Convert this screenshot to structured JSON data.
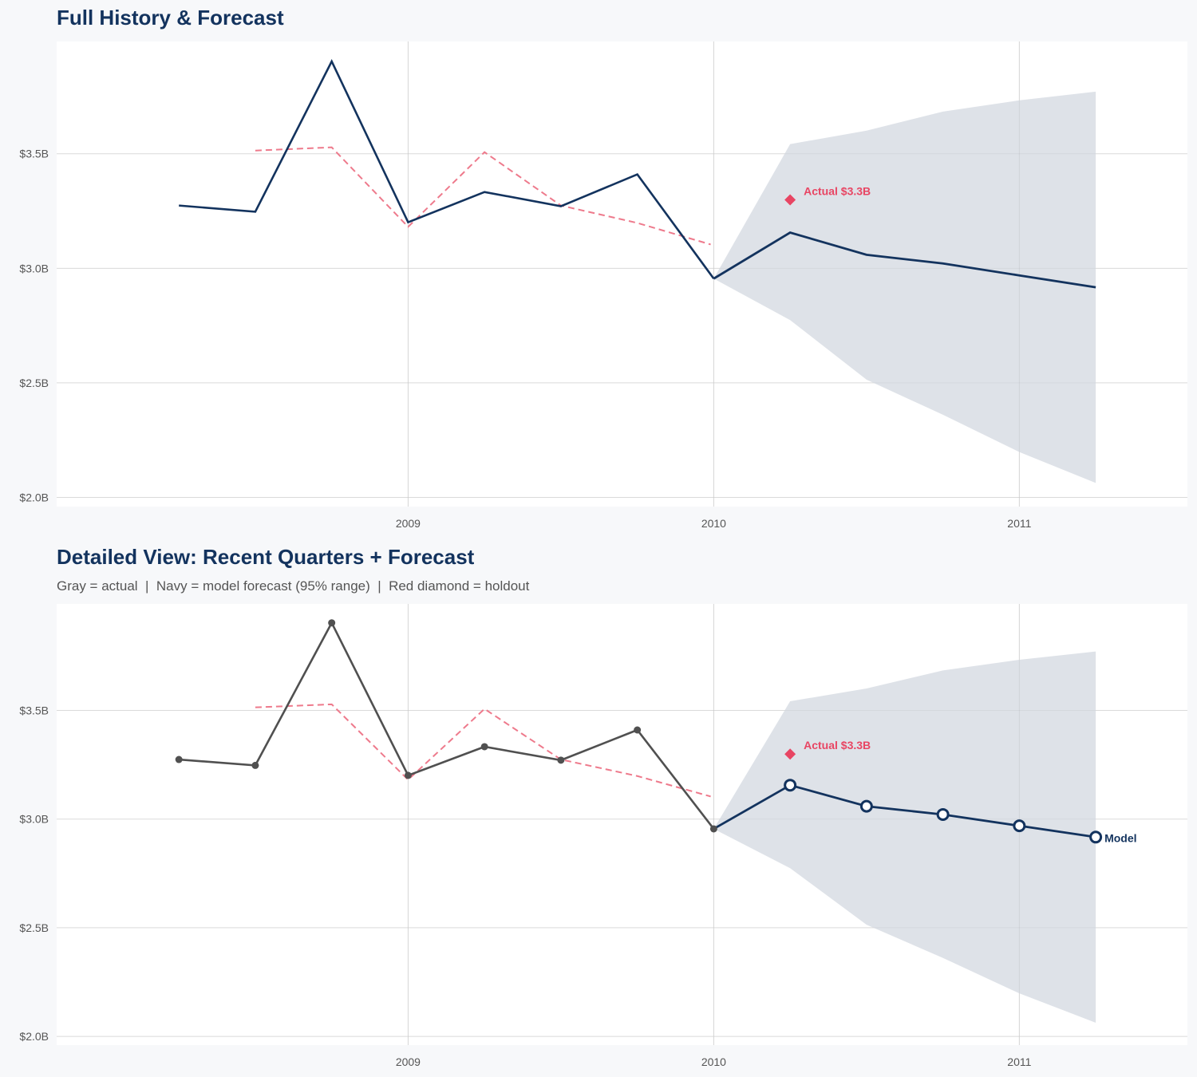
{
  "colors": {
    "navy": "#13335e",
    "gray_actual": "#505050",
    "holdout_red": "#e84563",
    "band": "#dce0e7",
    "fitted_dashed": "#ee7a8c",
    "background": "#f7f8fa"
  },
  "chart_data": [
    {
      "type": "line",
      "title": "Full History & Forecast",
      "subtitle": "",
      "xlabel": "",
      "ylabel": "",
      "x_ticks": [
        2009,
        2010,
        2011
      ],
      "x_tick_labels": [
        "2009",
        "2010",
        "2011"
      ],
      "y_ticks": [
        2.0,
        2.5,
        3.0,
        3.5
      ],
      "y_tick_labels": [
        "$2.0B",
        "$2.5B",
        "$3.0B",
        "$3.5B"
      ],
      "xlim": [
        2007.85,
        2011.55
      ],
      "ylim": [
        1.96,
        3.99
      ],
      "grid": true,
      "show_markers": false,
      "actual": {
        "x": [
          2008.25,
          2008.5,
          2008.75,
          2009.0,
          2009.25,
          2009.5,
          2009.75,
          2010.0
        ],
        "y": [
          3.274,
          3.247,
          3.903,
          3.201,
          3.333,
          3.271,
          3.41,
          2.955
        ],
        "color": "#13335e"
      },
      "fitted": {
        "x": [
          2008.5,
          2008.75,
          2009.0,
          2009.25,
          2009.5,
          2009.75,
          2009.99
        ],
        "y": [
          3.514,
          3.528,
          3.181,
          3.507,
          3.274,
          3.198,
          3.104
        ]
      },
      "forecast": {
        "x": [
          2010.0,
          2010.25,
          2010.5,
          2010.75,
          2011.0,
          2011.25
        ],
        "y": [
          2.955,
          3.156,
          3.059,
          3.021,
          2.969,
          2.917
        ],
        "upper": [
          2.955,
          3.542,
          3.601,
          3.684,
          3.733,
          3.771
        ],
        "lower": [
          2.955,
          2.774,
          2.514,
          2.361,
          2.198,
          2.063
        ]
      },
      "holdout": {
        "x": 2010.25,
        "y": 3.299,
        "label": "Actual $3.3B"
      }
    },
    {
      "type": "line",
      "title": "Detailed View: Recent Quarters + Forecast",
      "subtitle": "Gray = actual  |  Navy = model forecast (95% range)  |  Red diamond = holdout",
      "xlabel": "",
      "ylabel": "",
      "x_ticks": [
        2009,
        2010,
        2011
      ],
      "x_tick_labels": [
        "2009",
        "2010",
        "2011"
      ],
      "y_ticks": [
        2.0,
        2.5,
        3.0,
        3.5
      ],
      "y_tick_labels": [
        "$2.0B",
        "$2.5B",
        "$3.0B",
        "$3.5B"
      ],
      "xlim": [
        2007.85,
        2011.55
      ],
      "ylim": [
        1.96,
        3.99
      ],
      "grid": true,
      "show_markers": true,
      "actual": {
        "x": [
          2008.25,
          2008.5,
          2008.75,
          2009.0,
          2009.25,
          2009.5,
          2009.75,
          2010.0
        ],
        "y": [
          3.274,
          3.247,
          3.903,
          3.201,
          3.333,
          3.271,
          3.41,
          2.955
        ],
        "color": "#505050"
      },
      "fitted": {
        "x": [
          2008.5,
          2008.75,
          2009.0,
          2009.25,
          2009.5,
          2009.75,
          2009.99
        ],
        "y": [
          3.514,
          3.528,
          3.181,
          3.507,
          3.274,
          3.198,
          3.104
        ]
      },
      "forecast": {
        "x": [
          2010.0,
          2010.25,
          2010.5,
          2010.75,
          2011.0,
          2011.25
        ],
        "y": [
          2.955,
          3.156,
          3.059,
          3.021,
          2.969,
          2.917
        ],
        "upper": [
          2.955,
          3.542,
          3.601,
          3.684,
          3.733,
          3.771
        ],
        "lower": [
          2.955,
          2.774,
          2.514,
          2.361,
          2.198,
          2.063
        ],
        "end_label": "Model"
      },
      "holdout": {
        "x": 2010.25,
        "y": 3.299,
        "label": "Actual $3.3B"
      }
    }
  ]
}
